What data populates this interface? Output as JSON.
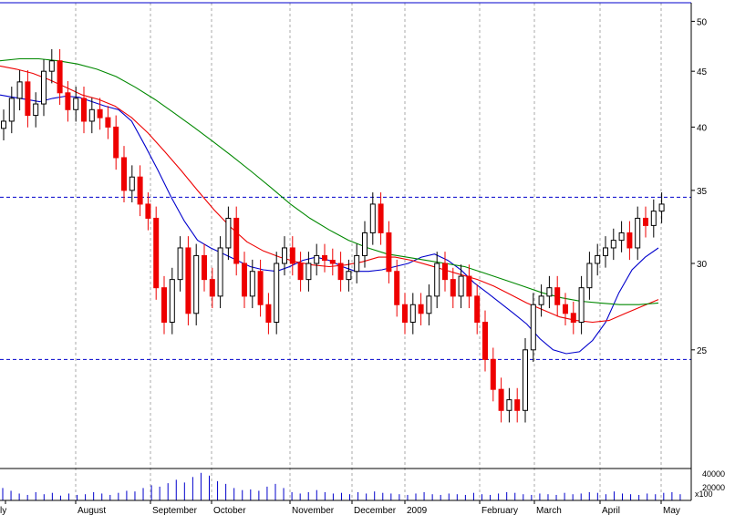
{
  "chart_data": {
    "type": "candlestick",
    "title": "",
    "y_scale": "log",
    "ylim": [
      19.5,
      52
    ],
    "price_ticks": [
      "25",
      "30",
      "35",
      "40",
      "45",
      "50"
    ],
    "x_month_labels": [
      "ly",
      "August",
      "September",
      "October",
      "November",
      "December",
      "2009",
      "February",
      "March",
      "April",
      "May"
    ],
    "volume_ticks": [
      "40000",
      "20000",
      "x100"
    ],
    "grid": "vertical dashed at month starts",
    "reference_lines": [
      24.5,
      34.5
    ],
    "colors": {
      "up": "#000000",
      "down": "#ee0000",
      "ma_short": "#0000cc",
      "ma_medium": "#ee0000",
      "ma_long": "#008800",
      "reference": "#0000cc",
      "volume": "#0000cc"
    },
    "closes": [
      40.5,
      42.5,
      44,
      41,
      42,
      45,
      46,
      43,
      41.5,
      42.5,
      40.5,
      41.5,
      40.8,
      40,
      37.5,
      35,
      36,
      34,
      33,
      28.5,
      26.5,
      29,
      31,
      27,
      30.5,
      29,
      28,
      31,
      33,
      30,
      28,
      29.5,
      27.5,
      26.5,
      30,
      31,
      30,
      29,
      30,
      30.5,
      30.2,
      30,
      29,
      29.5,
      30.5,
      32,
      34,
      32,
      29.5,
      27.5,
      26.5,
      27.5,
      27,
      28,
      30,
      29,
      28,
      29.2,
      28,
      26.5,
      24.5,
      23,
      22,
      22.5,
      22,
      25,
      27.5,
      28,
      28.5,
      27.5,
      27,
      26.5,
      28.5,
      30,
      30.5,
      31,
      31.5,
      32,
      31,
      33,
      32.5,
      33.5,
      34
    ],
    "moving_averages": [
      {
        "name": "short",
        "values": [
          42.8,
          42.6,
          42.4,
          42.2,
          42.5,
          42.7,
          42.6,
          42.2,
          41.8,
          41.5,
          40.5,
          38.5,
          36.5,
          34.5,
          32.8,
          31.5,
          31,
          30.6,
          30.2,
          29.8,
          29.6,
          29.5,
          29.8,
          30.2,
          30.4,
          30.2,
          29.8,
          29.5,
          29.5,
          29.6,
          29.8,
          30,
          30.4,
          30.6,
          30.2,
          29.6,
          28.8,
          28.2,
          27.6,
          27,
          26.4,
          25.6,
          25,
          24.8,
          24.9,
          25.5,
          26.5,
          28.2,
          29.6,
          30.4,
          31
        ]
      },
      {
        "name": "medium",
        "values": [
          45.5,
          45.2,
          44.8,
          44.2,
          43.5,
          42.8,
          42.4,
          41.8,
          40.8,
          39.5,
          38,
          36.5,
          35,
          33.6,
          32.4,
          31.4,
          30.8,
          30.4,
          30.1,
          29.9,
          29.8,
          29.9,
          30.1,
          30.4,
          30.4,
          30.2,
          29.9,
          29.6,
          29.3,
          29,
          28.6,
          28.1,
          27.6,
          27.2,
          26.8,
          26.6,
          26.5,
          26.6,
          27,
          27.4,
          27.8
        ]
      },
      {
        "name": "long",
        "values": [
          46,
          46.2,
          46.2,
          46,
          45.7,
          45.2,
          44.5,
          43.5,
          42.4,
          41.2,
          40,
          38.8,
          37.6,
          36.4,
          35.2,
          34,
          33,
          32.2,
          31.5,
          31,
          30.6,
          30.4,
          30.2,
          30,
          29.8,
          29.4,
          29,
          28.6,
          28.2,
          27.9,
          27.7,
          27.6,
          27.5,
          27.5,
          27.6
        ]
      }
    ],
    "volume": [
      18,
      14,
      10,
      8,
      12,
      9,
      11,
      7,
      10,
      8,
      9,
      12,
      10,
      8,
      11,
      14,
      13,
      18,
      22,
      20,
      25,
      30,
      26,
      34,
      40,
      36,
      28,
      24,
      18,
      15,
      16,
      14,
      20,
      24,
      18,
      12,
      10,
      12,
      15,
      12,
      10,
      11,
      9,
      12,
      10,
      13,
      11,
      10,
      9,
      8,
      10,
      12,
      9,
      8,
      10,
      9,
      8,
      11,
      9,
      8,
      10,
      12,
      11,
      9,
      8,
      10,
      9,
      8,
      11,
      9,
      10,
      12,
      11,
      9,
      13,
      10,
      9,
      8,
      10,
      9,
      11,
      12,
      9
    ]
  }
}
